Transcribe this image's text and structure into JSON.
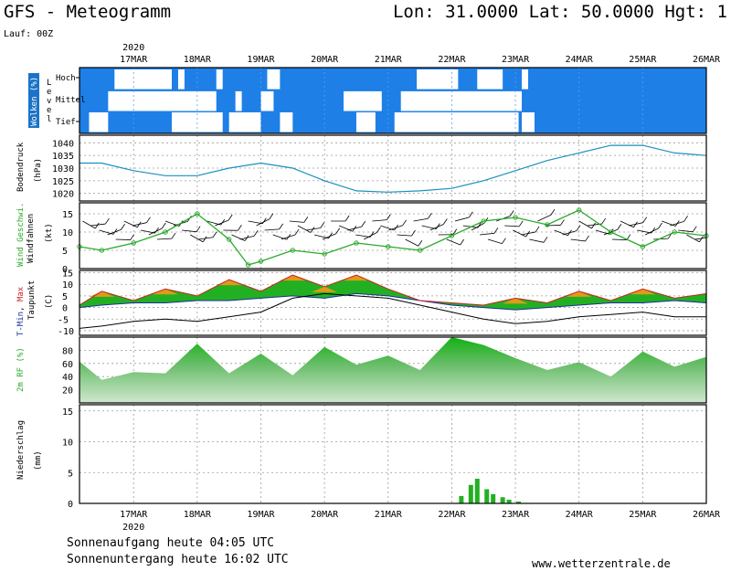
{
  "header": {
    "title": "GFS - Meteogramm",
    "coords": "Lon: 31.0000 Lat: 50.0000 Hgt: 1",
    "run": "Lauf: 00Z"
  },
  "footer": {
    "sunrise": "Sonnenaufgang heute 04:05 UTC",
    "sunset": "Sonnenuntergang heute 16:02 UTC",
    "website": "www.wetterzentrale.de"
  },
  "colors": {
    "sky": "#1e7fe6",
    "cloud": "#ffffff",
    "pressure": "#1a90c0",
    "wind_speed": "#2aaa2a",
    "wind_barb": "#000000",
    "tmin": "#1a2f9e",
    "tmax": "#cc2222",
    "temp_band_green": "#22b022",
    "temp_band_orange": "#e09a1a",
    "dewpoint": "#000000",
    "rh_dark": "#12b012",
    "rh_light": "#cfe8cf",
    "precip": "#22b022",
    "grid": "#9a9a9a"
  },
  "chart_data": {
    "year": "2020",
    "x_labels": [
      "17MAR",
      "18MAR",
      "19MAR",
      "20MAR",
      "21MAR",
      "22MAR",
      "23MAR",
      "24MAR",
      "25MAR",
      "26MAR"
    ],
    "x_axis_unit": "days since 00Z 16MAR 2020",
    "x_range": [
      0.15,
      10.0
    ],
    "panels": [
      {
        "id": "clouds",
        "type": "heatmap",
        "ylabel_colored": "Wolken (%)",
        "ylabel": "Level",
        "y_ticks": [
          "Hoch",
          "Mittel",
          "Tief"
        ],
        "levels": {
          "high": [
            [
              0.7,
              1.6
            ],
            [
              1.7,
              1.8
            ],
            [
              2.3,
              2.4
            ],
            [
              3.1,
              3.3
            ],
            [
              5.45,
              6.1
            ],
            [
              6.4,
              6.8
            ],
            [
              7.1,
              7.2
            ]
          ],
          "mid": [
            [
              0.6,
              2.3
            ],
            [
              2.6,
              2.7
            ],
            [
              3.0,
              3.2
            ],
            [
              4.3,
              4.9
            ],
            [
              5.2,
              7.1
            ]
          ],
          "low": [
            [
              0.3,
              0.6
            ],
            [
              1.6,
              2.4
            ],
            [
              2.5,
              3.0
            ],
            [
              3.3,
              3.5
            ],
            [
              4.5,
              4.8
            ],
            [
              5.1,
              7.05
            ],
            [
              7.1,
              7.3
            ]
          ]
        }
      },
      {
        "id": "pressure",
        "type": "line",
        "ylabel": "Bodendruck",
        "yunit": "(hPa)",
        "ylim": [
          1017,
          1043
        ],
        "y_ticks": [
          1020,
          1025,
          1030,
          1035,
          1040
        ],
        "x": [
          0.15,
          0.5,
          1.0,
          1.5,
          2.0,
          2.5,
          3.0,
          3.5,
          4.0,
          4.5,
          5.0,
          5.5,
          6.0,
          6.5,
          7.0,
          7.5,
          8.0,
          8.5,
          9.0,
          9.5,
          10.0
        ],
        "values": [
          1032,
          1032,
          1029,
          1027,
          1027,
          1030,
          1032,
          1030,
          1025,
          1021,
          1020.5,
          1021,
          1022,
          1025,
          1029,
          1033,
          1036,
          1039,
          1039,
          1036,
          1035
        ]
      },
      {
        "id": "wind",
        "type": "line",
        "ylabel_colored": "Wind Geschwi.",
        "ylabel": "Windfahnen",
        "yunit": "(kt)",
        "ylim": [
          0,
          18
        ],
        "y_ticks": [
          0,
          5,
          10,
          15
        ],
        "x": [
          0.15,
          0.5,
          1.0,
          1.5,
          2.0,
          2.5,
          2.8,
          3.0,
          3.5,
          4.0,
          4.5,
          5.0,
          5.5,
          6.0,
          6.5,
          7.0,
          7.5,
          8.0,
          8.5,
          9.0,
          9.5,
          10.0
        ],
        "values": [
          6,
          5,
          7,
          10,
          15,
          8,
          1,
          2,
          5,
          4,
          7,
          6,
          5,
          9,
          13,
          14,
          12,
          16,
          10,
          6,
          10,
          9
        ]
      },
      {
        "id": "temperature",
        "type": "area",
        "ylabel_parts": [
          "T-",
          "Min",
          ", ",
          "Max"
        ],
        "ylabel": "Taupunkt",
        "yunit": "(C)",
        "ylim": [
          -12,
          16
        ],
        "y_ticks": [
          -10,
          -5,
          0,
          5,
          10,
          15
        ],
        "x": [
          0.15,
          0.5,
          1.0,
          1.5,
          2.0,
          2.5,
          3.0,
          3.5,
          4.0,
          4.5,
          5.0,
          5.5,
          6.0,
          6.5,
          7.0,
          7.5,
          8.0,
          8.5,
          9.0,
          9.5,
          10.0
        ],
        "tmin": [
          0,
          1,
          2,
          2,
          3,
          3,
          4,
          5,
          4,
          6,
          5,
          3,
          1,
          0,
          -1,
          0,
          1,
          2,
          2,
          3,
          2
        ],
        "tmax": [
          1,
          7,
          3,
          8,
          5,
          12,
          7,
          14,
          9,
          14,
          8,
          3,
          2,
          1,
          4,
          2,
          7,
          3,
          8,
          4,
          6
        ],
        "dewpoint": [
          -9,
          -8,
          -6,
          -5,
          -6,
          -4,
          -2,
          4,
          6,
          5,
          4,
          1,
          -2,
          -5,
          -7,
          -6,
          -4,
          -3,
          -2,
          -4,
          -4
        ]
      },
      {
        "id": "humidity",
        "type": "area",
        "ylabel_colored": "2m RF (%)",
        "ylim": [
          0,
          100
        ],
        "y_ticks": [
          20,
          40,
          60,
          80
        ],
        "x": [
          0.15,
          0.5,
          1.0,
          1.5,
          2.0,
          2.5,
          3.0,
          3.5,
          4.0,
          4.5,
          5.0,
          5.5,
          6.0,
          6.5,
          7.0,
          7.5,
          8.0,
          8.5,
          9.0,
          9.5,
          10.0
        ],
        "values": [
          63,
          35,
          47,
          45,
          90,
          45,
          75,
          42,
          85,
          58,
          72,
          50,
          100,
          88,
          68,
          50,
          62,
          40,
          78,
          55,
          70
        ]
      },
      {
        "id": "precip",
        "type": "bar",
        "ylabel": "Niederschlag",
        "yunit": "(mm)",
        "ylim": [
          0,
          16
        ],
        "y_ticks": [
          0,
          5,
          10,
          15
        ],
        "x": [
          6.15,
          6.3,
          6.4,
          6.55,
          6.65,
          6.8,
          6.9,
          7.05
        ],
        "values": [
          1.2,
          3.0,
          4.0,
          2.3,
          1.5,
          1.0,
          0.6,
          0.3
        ]
      }
    ]
  }
}
